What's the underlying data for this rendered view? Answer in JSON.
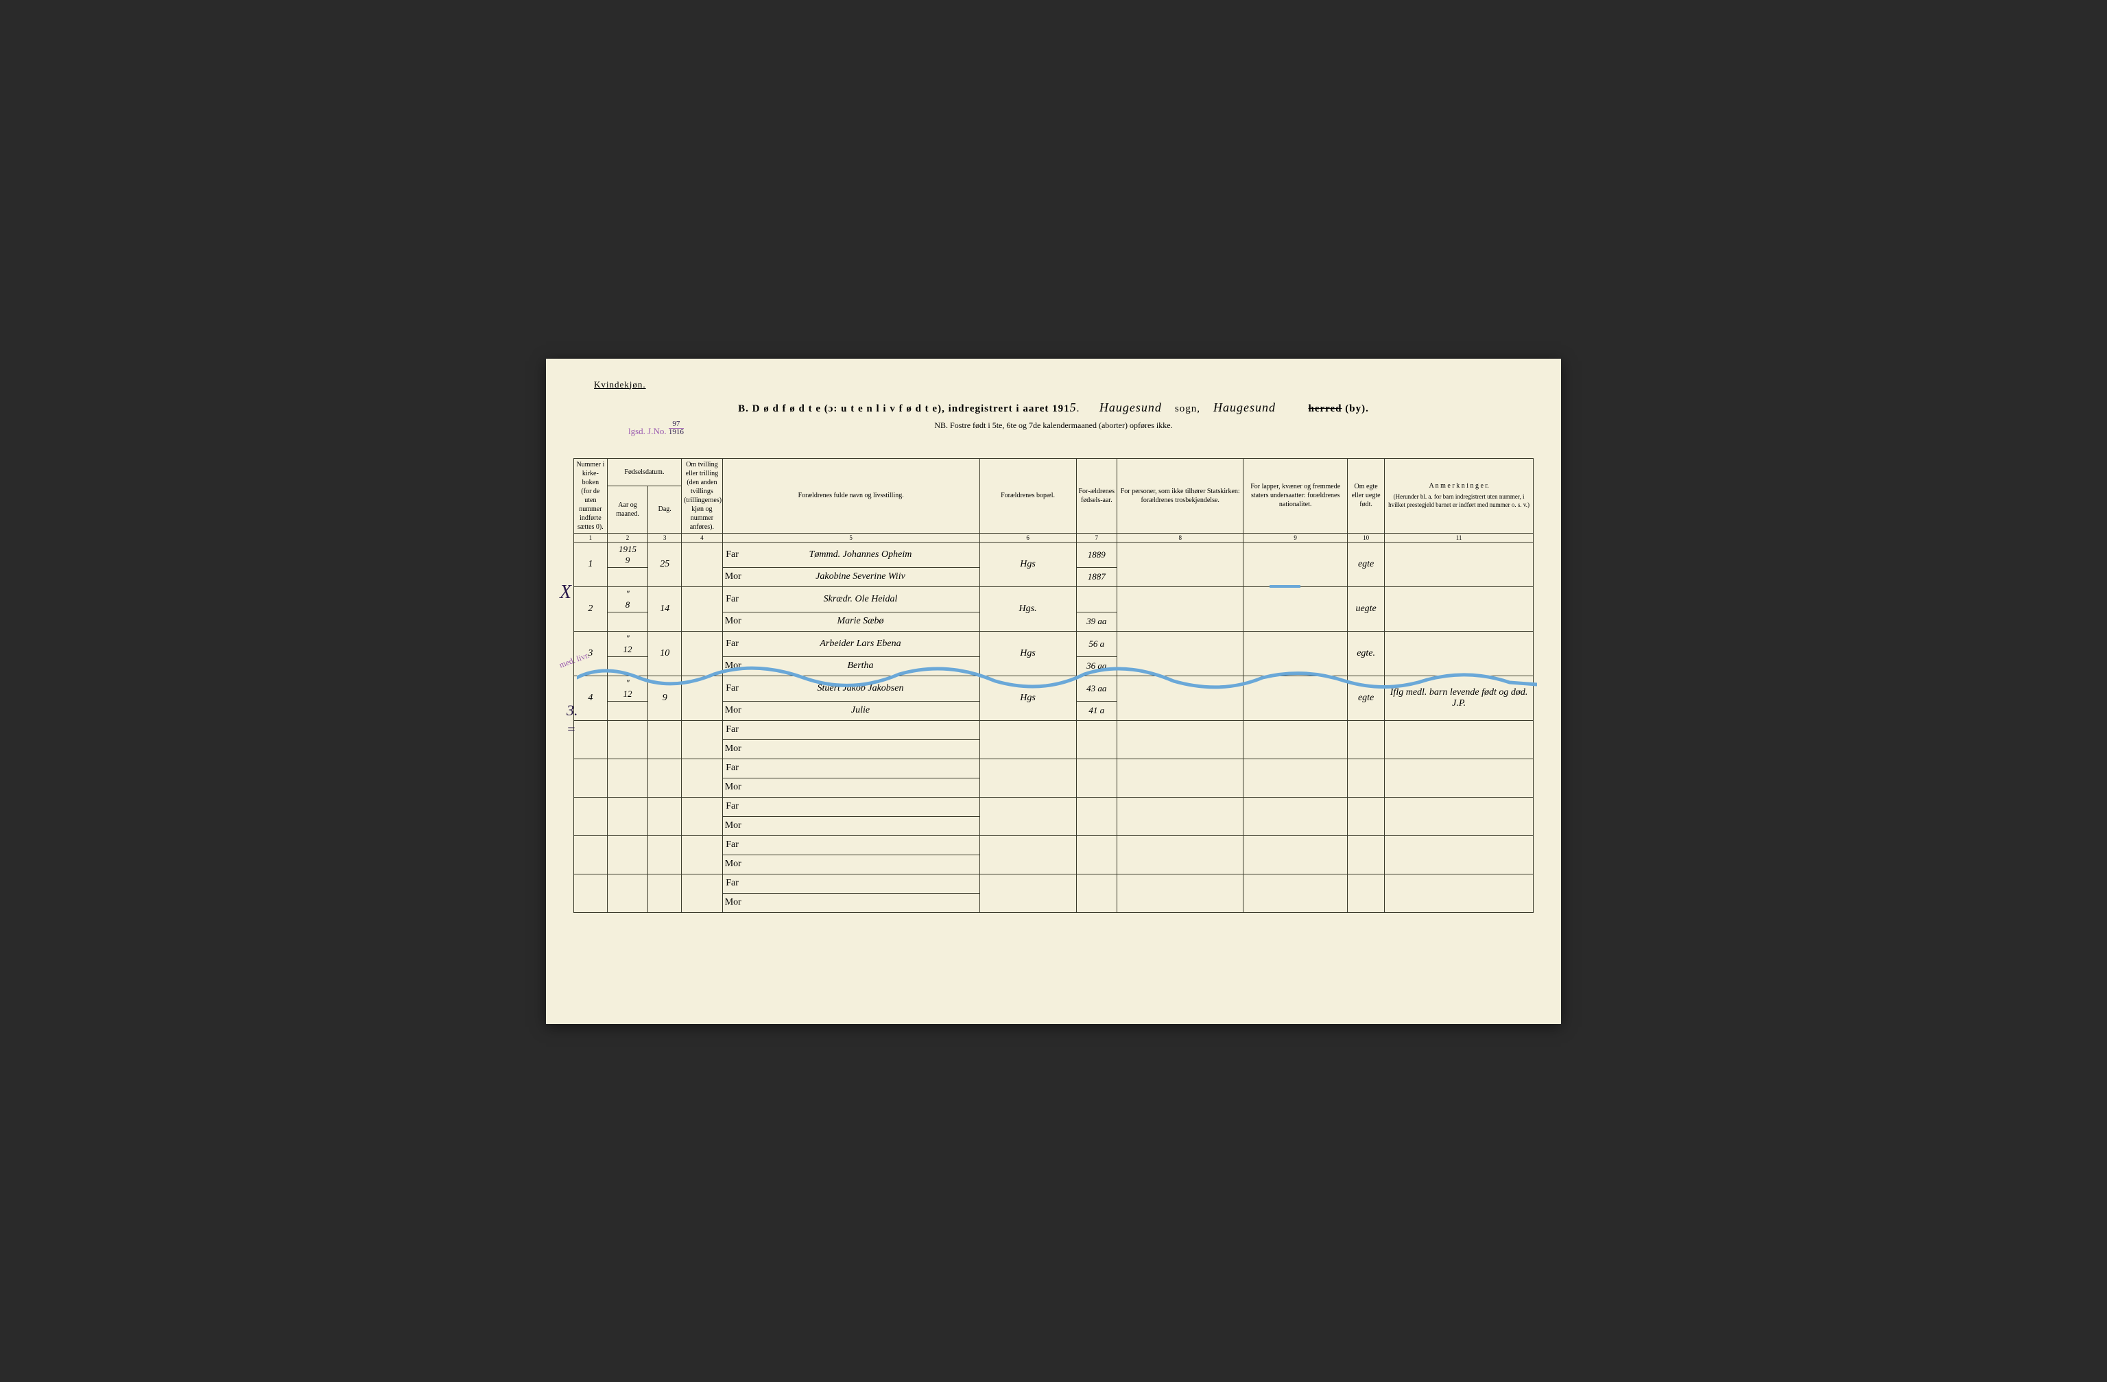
{
  "header": {
    "gender": "Kvindekjøn.",
    "title_prefix": "B.  D ø d f ø d t e  (ɔ:  u t e n  l i v  f ø d t e),  indregistrert i aaret 191",
    "year_hand": "5",
    "period": ".",
    "sogn_hand": "Haugesund",
    "sogn_label": "sogn,",
    "herred_hand": "Haugesund",
    "herred_label_strike": "herred",
    "by_label": "(by).",
    "subtitle": "NB.  Fostre født i 5te, 6te og 7de kalendermaaned (aborter) opføres ikke.",
    "jno_label": "lgsd. J.No.",
    "jno_top": "97",
    "jno_bot": "1916"
  },
  "columns": {
    "c1": "Nummer i kirke-boken (for de uten nummer indførte sættes 0).",
    "c2_top": "Fødselsdatum.",
    "c2a": "Aar og maaned.",
    "c2b": "Dag.",
    "c4": "Om tvilling eller trilling (den anden tvillings (trillingernes) kjøn og nummer anføres).",
    "c5": "Forældrenes fulde navn og livsstilling.",
    "c6": "Forældrenes bopæl.",
    "c7": "For-ældrenes fødsels-aar.",
    "c8": "For personer, som ikke tilhører Statskirken: forældrenes trosbekjendelse.",
    "c9": "For lapper, kvæner og fremmede staters undersaatter: forældrenes nationalitet.",
    "c10": "Om egte eller uegte født.",
    "c11_top": "A n m e r k n i n g e r.",
    "c11_sub": "(Herunder bl. a. for barn indregistrert uten nummer, i hvilket prestegjeld barnet er indført med nummer o. s. v.)",
    "nums": [
      "1",
      "2",
      "3",
      "4",
      "5",
      "6",
      "7",
      "8",
      "9",
      "10",
      "11"
    ]
  },
  "rows": [
    {
      "no": "1",
      "aar": "1915",
      "mnd": "9",
      "dag": "25",
      "far": "Tømmd. Johannes Opheim",
      "mor": "Jakobine Severine Wiiv",
      "bopel": "Hgs",
      "far_aar": "1889",
      "mor_aar": "1887",
      "egte": "egte",
      "anm": ""
    },
    {
      "no": "2",
      "aar": "\"",
      "mnd": "8",
      "dag": "14",
      "far": "Skrædr. Ole Heidal",
      "mor": "Marie Sæbø",
      "bopel": "Hgs.",
      "far_aar": "",
      "mor_aar": "39 aa",
      "egte": "uegte",
      "anm": ""
    },
    {
      "no": "3",
      "aar": "\"",
      "mnd": "12",
      "dag": "10",
      "far": "Arbeider Lars Ebena",
      "mor": "Bertha",
      "bopel": "Hgs",
      "far_aar": "56 a",
      "mor_aar": "36 aa",
      "egte": "egte.",
      "anm": ""
    },
    {
      "no": "4",
      "aar": "\"",
      "mnd": "12",
      "dag": "9",
      "far": "Stuert Jakob Jakobsen",
      "mor": "Julie",
      "bopel": "Hgs",
      "far_aar": "43 aa",
      "mor_aar": "41 a",
      "egte": "egte",
      "anm": "Iflg medl. barn levende født og død.  J.P."
    }
  ],
  "empty_pairs": 5,
  "far_label": "Far",
  "mor_label": "Mor",
  "margin": {
    "x": "X",
    "purple": "med. livr.",
    "three": "3.",
    "eq": "="
  },
  "style": {
    "page_bg": "#f4f0dc",
    "ink": "#2a1a1a",
    "purple": "#9b5bb0",
    "blue": "#6aa8d8"
  }
}
